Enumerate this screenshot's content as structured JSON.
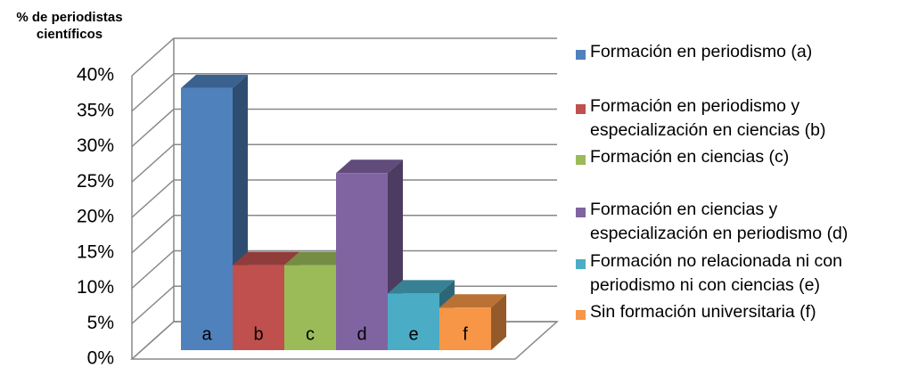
{
  "chart_data": {
    "type": "bar3d",
    "y_axis_label": "% de periodistas científicos",
    "categories": [
      "a",
      "b",
      "c",
      "d",
      "e",
      "f"
    ],
    "values": [
      37,
      12,
      12,
      25,
      8,
      6
    ],
    "colors": [
      "#4f81bd",
      "#c0504d",
      "#9bbb59",
      "#8064a2",
      "#4bacc6",
      "#f79646"
    ],
    "legend": [
      "Formación en periodismo (a)",
      "Formación en periodismo y especialización en ciencias (b)",
      "Formación en ciencias (c)",
      "Formación en ciencias y especialización en periodismo (d)",
      "Formación no relacionada ni con periodismo ni con ciencias (e)",
      "Sin formación universitaria (f)"
    ],
    "ylim": [
      0,
      40
    ],
    "yticks": [
      {
        "value": 0,
        "label": "0%"
      },
      {
        "value": 5,
        "label": "5%"
      },
      {
        "value": 10,
        "label": "10%"
      },
      {
        "value": 15,
        "label": "15%"
      },
      {
        "value": 20,
        "label": "20%"
      },
      {
        "value": 25,
        "label": "25%"
      },
      {
        "value": 30,
        "label": "30%"
      },
      {
        "value": 35,
        "label": "35%"
      },
      {
        "value": 40,
        "label": "40%"
      }
    ],
    "grid": true
  }
}
